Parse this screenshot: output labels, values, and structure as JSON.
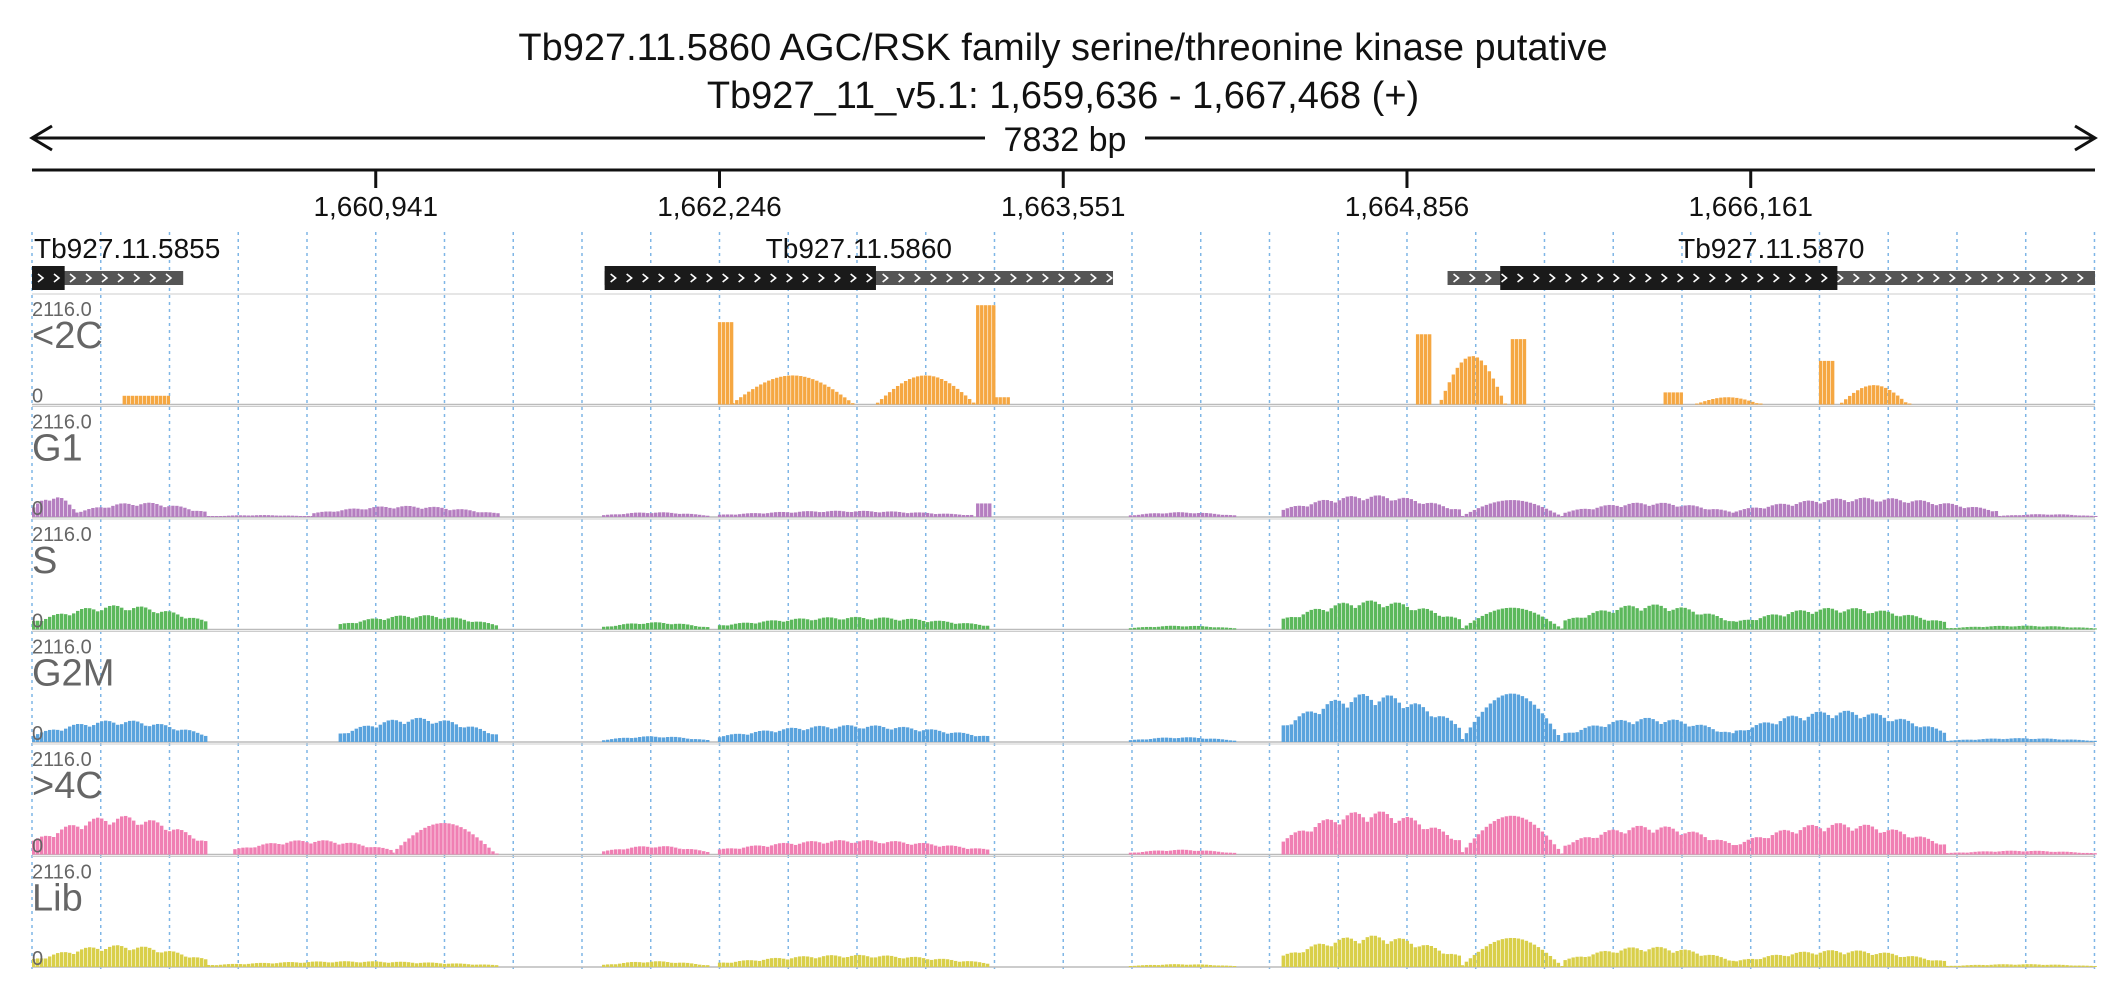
{
  "header": {
    "title": "Tb927.11.5860  AGC/RSK family serine/threonine kinase  putative",
    "subtitle": "Tb927_11_v5.1: 1,659,636 - 1,667,468 (+)",
    "span_label": "7832 bp"
  },
  "chart_data": {
    "type": "genome_browser_coverage",
    "region": {
      "chrom": "Tb927_11_v5.1",
      "start": 1659636,
      "end": 1667468,
      "strand": "+"
    },
    "ticks": [
      {
        "value": 1660941,
        "label": "1,660,941"
      },
      {
        "value": 1662246,
        "label": "1,662,246"
      },
      {
        "value": 1663551,
        "label": "1,663,551"
      },
      {
        "value": 1664856,
        "label": "1,664,856"
      },
      {
        "value": 1666161,
        "label": "1,666,161"
      }
    ],
    "genes": [
      {
        "name": "Tb927.11.5855",
        "utr": [
          1659636,
          1660210
        ],
        "cds": [
          1659636,
          1659760
        ],
        "strand": "+"
      },
      {
        "name": "Tb927.11.5860",
        "utr": [
          1661810,
          1663740
        ],
        "cds": [
          1661810,
          1662840
        ],
        "strand": "+"
      },
      {
        "name": "Tb927.11.5870",
        "utr": [
          1665010,
          1667468
        ],
        "cds": [
          1665210,
          1666490
        ],
        "strand": "+"
      }
    ],
    "y_max_label": "2116.0",
    "y_min_label": "0",
    "y_max": 2116,
    "tracks": [
      {
        "name": "<2C",
        "color": "#f5a742",
        "segments": [
          {
            "start": 1659980,
            "end": 1660150,
            "shape": "flat",
            "peak": 180
          },
          {
            "start": 1662240,
            "end": 1662290,
            "shape": "flat",
            "peak": 1700
          },
          {
            "start": 1662290,
            "end": 1662760,
            "shape": "dome",
            "peak": 600
          },
          {
            "start": 1662840,
            "end": 1663220,
            "shape": "dome",
            "peak": 600
          },
          {
            "start": 1663220,
            "end": 1663290,
            "shape": "flat",
            "peak": 2050
          },
          {
            "start": 1663290,
            "end": 1663340,
            "shape": "flat",
            "peak": 150
          },
          {
            "start": 1664890,
            "end": 1664950,
            "shape": "flat",
            "peak": 1450
          },
          {
            "start": 1664980,
            "end": 1665230,
            "shape": "dome",
            "peak": 1000
          },
          {
            "start": 1665250,
            "end": 1665310,
            "shape": "flat",
            "peak": 1350
          },
          {
            "start": 1665830,
            "end": 1665900,
            "shape": "flat",
            "peak": 250
          },
          {
            "start": 1665950,
            "end": 1666200,
            "shape": "dome",
            "peak": 150
          },
          {
            "start": 1666420,
            "end": 1666470,
            "shape": "flat",
            "peak": 900
          },
          {
            "start": 1666500,
            "end": 1666760,
            "shape": "dome",
            "peak": 400
          }
        ]
      },
      {
        "name": "G1",
        "color": "#b57ec0",
        "segments": [
          {
            "start": 1659636,
            "end": 1659800,
            "shape": "hump",
            "peak": 450
          },
          {
            "start": 1659800,
            "end": 1660300,
            "shape": "hump",
            "peak": 300
          },
          {
            "start": 1660300,
            "end": 1660700,
            "shape": "hump",
            "peak": 40
          },
          {
            "start": 1660700,
            "end": 1661400,
            "shape": "hump",
            "peak": 230
          },
          {
            "start": 1661800,
            "end": 1662200,
            "shape": "hump",
            "peak": 100
          },
          {
            "start": 1662240,
            "end": 1663200,
            "shape": "hump",
            "peak": 130
          },
          {
            "start": 1663220,
            "end": 1663270,
            "shape": "flat",
            "peak": 280
          },
          {
            "start": 1663800,
            "end": 1664200,
            "shape": "hump",
            "peak": 100
          },
          {
            "start": 1664380,
            "end": 1665060,
            "shape": "hump",
            "peak": 450
          },
          {
            "start": 1665060,
            "end": 1665450,
            "shape": "dome",
            "peak": 350
          },
          {
            "start": 1665450,
            "end": 1666100,
            "shape": "hump",
            "peak": 300
          },
          {
            "start": 1666100,
            "end": 1667100,
            "shape": "hump",
            "peak": 400
          },
          {
            "start": 1667100,
            "end": 1667468,
            "shape": "hump",
            "peak": 60
          }
        ]
      },
      {
        "name": "S",
        "color": "#5cb85c",
        "segments": [
          {
            "start": 1659636,
            "end": 1660300,
            "shape": "hump",
            "peak": 500
          },
          {
            "start": 1660800,
            "end": 1661400,
            "shape": "hump",
            "peak": 300
          },
          {
            "start": 1661800,
            "end": 1662200,
            "shape": "hump",
            "peak": 150
          },
          {
            "start": 1662240,
            "end": 1663270,
            "shape": "hump",
            "peak": 260
          },
          {
            "start": 1663800,
            "end": 1664200,
            "shape": "hump",
            "peak": 80
          },
          {
            "start": 1664380,
            "end": 1665060,
            "shape": "hump",
            "peak": 600
          },
          {
            "start": 1665060,
            "end": 1665450,
            "shape": "dome",
            "peak": 450
          },
          {
            "start": 1665450,
            "end": 1666100,
            "shape": "hump",
            "peak": 520
          },
          {
            "start": 1666100,
            "end": 1666900,
            "shape": "hump",
            "peak": 450
          },
          {
            "start": 1666900,
            "end": 1667468,
            "shape": "hump",
            "peak": 80
          }
        ]
      },
      {
        "name": "G2M",
        "color": "#5aa3dd",
        "segments": [
          {
            "start": 1659636,
            "end": 1660300,
            "shape": "hump",
            "peak": 450
          },
          {
            "start": 1660800,
            "end": 1661400,
            "shape": "hump",
            "peak": 500
          },
          {
            "start": 1661800,
            "end": 1662200,
            "shape": "hump",
            "peak": 120
          },
          {
            "start": 1662240,
            "end": 1663270,
            "shape": "hump",
            "peak": 350
          },
          {
            "start": 1663800,
            "end": 1664200,
            "shape": "hump",
            "peak": 100
          },
          {
            "start": 1664380,
            "end": 1665060,
            "shape": "hump",
            "peak": 1000
          },
          {
            "start": 1665060,
            "end": 1665450,
            "shape": "dome",
            "peak": 1000
          },
          {
            "start": 1665450,
            "end": 1666100,
            "shape": "hump",
            "peak": 500
          },
          {
            "start": 1666100,
            "end": 1666900,
            "shape": "hump",
            "peak": 650
          },
          {
            "start": 1666900,
            "end": 1667468,
            "shape": "hump",
            "peak": 80
          }
        ]
      },
      {
        "name": ">4C",
        "color": "#f07fb3",
        "segments": [
          {
            "start": 1659636,
            "end": 1660300,
            "shape": "hump",
            "peak": 800
          },
          {
            "start": 1660400,
            "end": 1661000,
            "shape": "hump",
            "peak": 300
          },
          {
            "start": 1661000,
            "end": 1661400,
            "shape": "dome",
            "peak": 650
          },
          {
            "start": 1661800,
            "end": 1662200,
            "shape": "hump",
            "peak": 180
          },
          {
            "start": 1662240,
            "end": 1663270,
            "shape": "hump",
            "peak": 300
          },
          {
            "start": 1663800,
            "end": 1664200,
            "shape": "hump",
            "peak": 100
          },
          {
            "start": 1664380,
            "end": 1665060,
            "shape": "hump",
            "peak": 900
          },
          {
            "start": 1665060,
            "end": 1665450,
            "shape": "dome",
            "peak": 800
          },
          {
            "start": 1665450,
            "end": 1666100,
            "shape": "hump",
            "peak": 600
          },
          {
            "start": 1666100,
            "end": 1666900,
            "shape": "hump",
            "peak": 650
          },
          {
            "start": 1666900,
            "end": 1667468,
            "shape": "hump",
            "peak": 80
          }
        ]
      },
      {
        "name": "Lib",
        "color": "#d9cf4a",
        "segments": [
          {
            "start": 1659636,
            "end": 1660300,
            "shape": "hump",
            "peak": 450
          },
          {
            "start": 1660300,
            "end": 1661400,
            "shape": "hump",
            "peak": 120
          },
          {
            "start": 1661800,
            "end": 1662200,
            "shape": "hump",
            "peak": 120
          },
          {
            "start": 1662240,
            "end": 1663270,
            "shape": "hump",
            "peak": 250
          },
          {
            "start": 1663800,
            "end": 1664200,
            "shape": "hump",
            "peak": 60
          },
          {
            "start": 1664380,
            "end": 1665060,
            "shape": "hump",
            "peak": 650
          },
          {
            "start": 1665060,
            "end": 1665450,
            "shape": "dome",
            "peak": 600
          },
          {
            "start": 1665450,
            "end": 1666100,
            "shape": "hump",
            "peak": 420
          },
          {
            "start": 1666100,
            "end": 1666900,
            "shape": "hump",
            "peak": 350
          },
          {
            "start": 1666900,
            "end": 1667468,
            "shape": "hump",
            "peak": 60
          }
        ]
      }
    ]
  }
}
